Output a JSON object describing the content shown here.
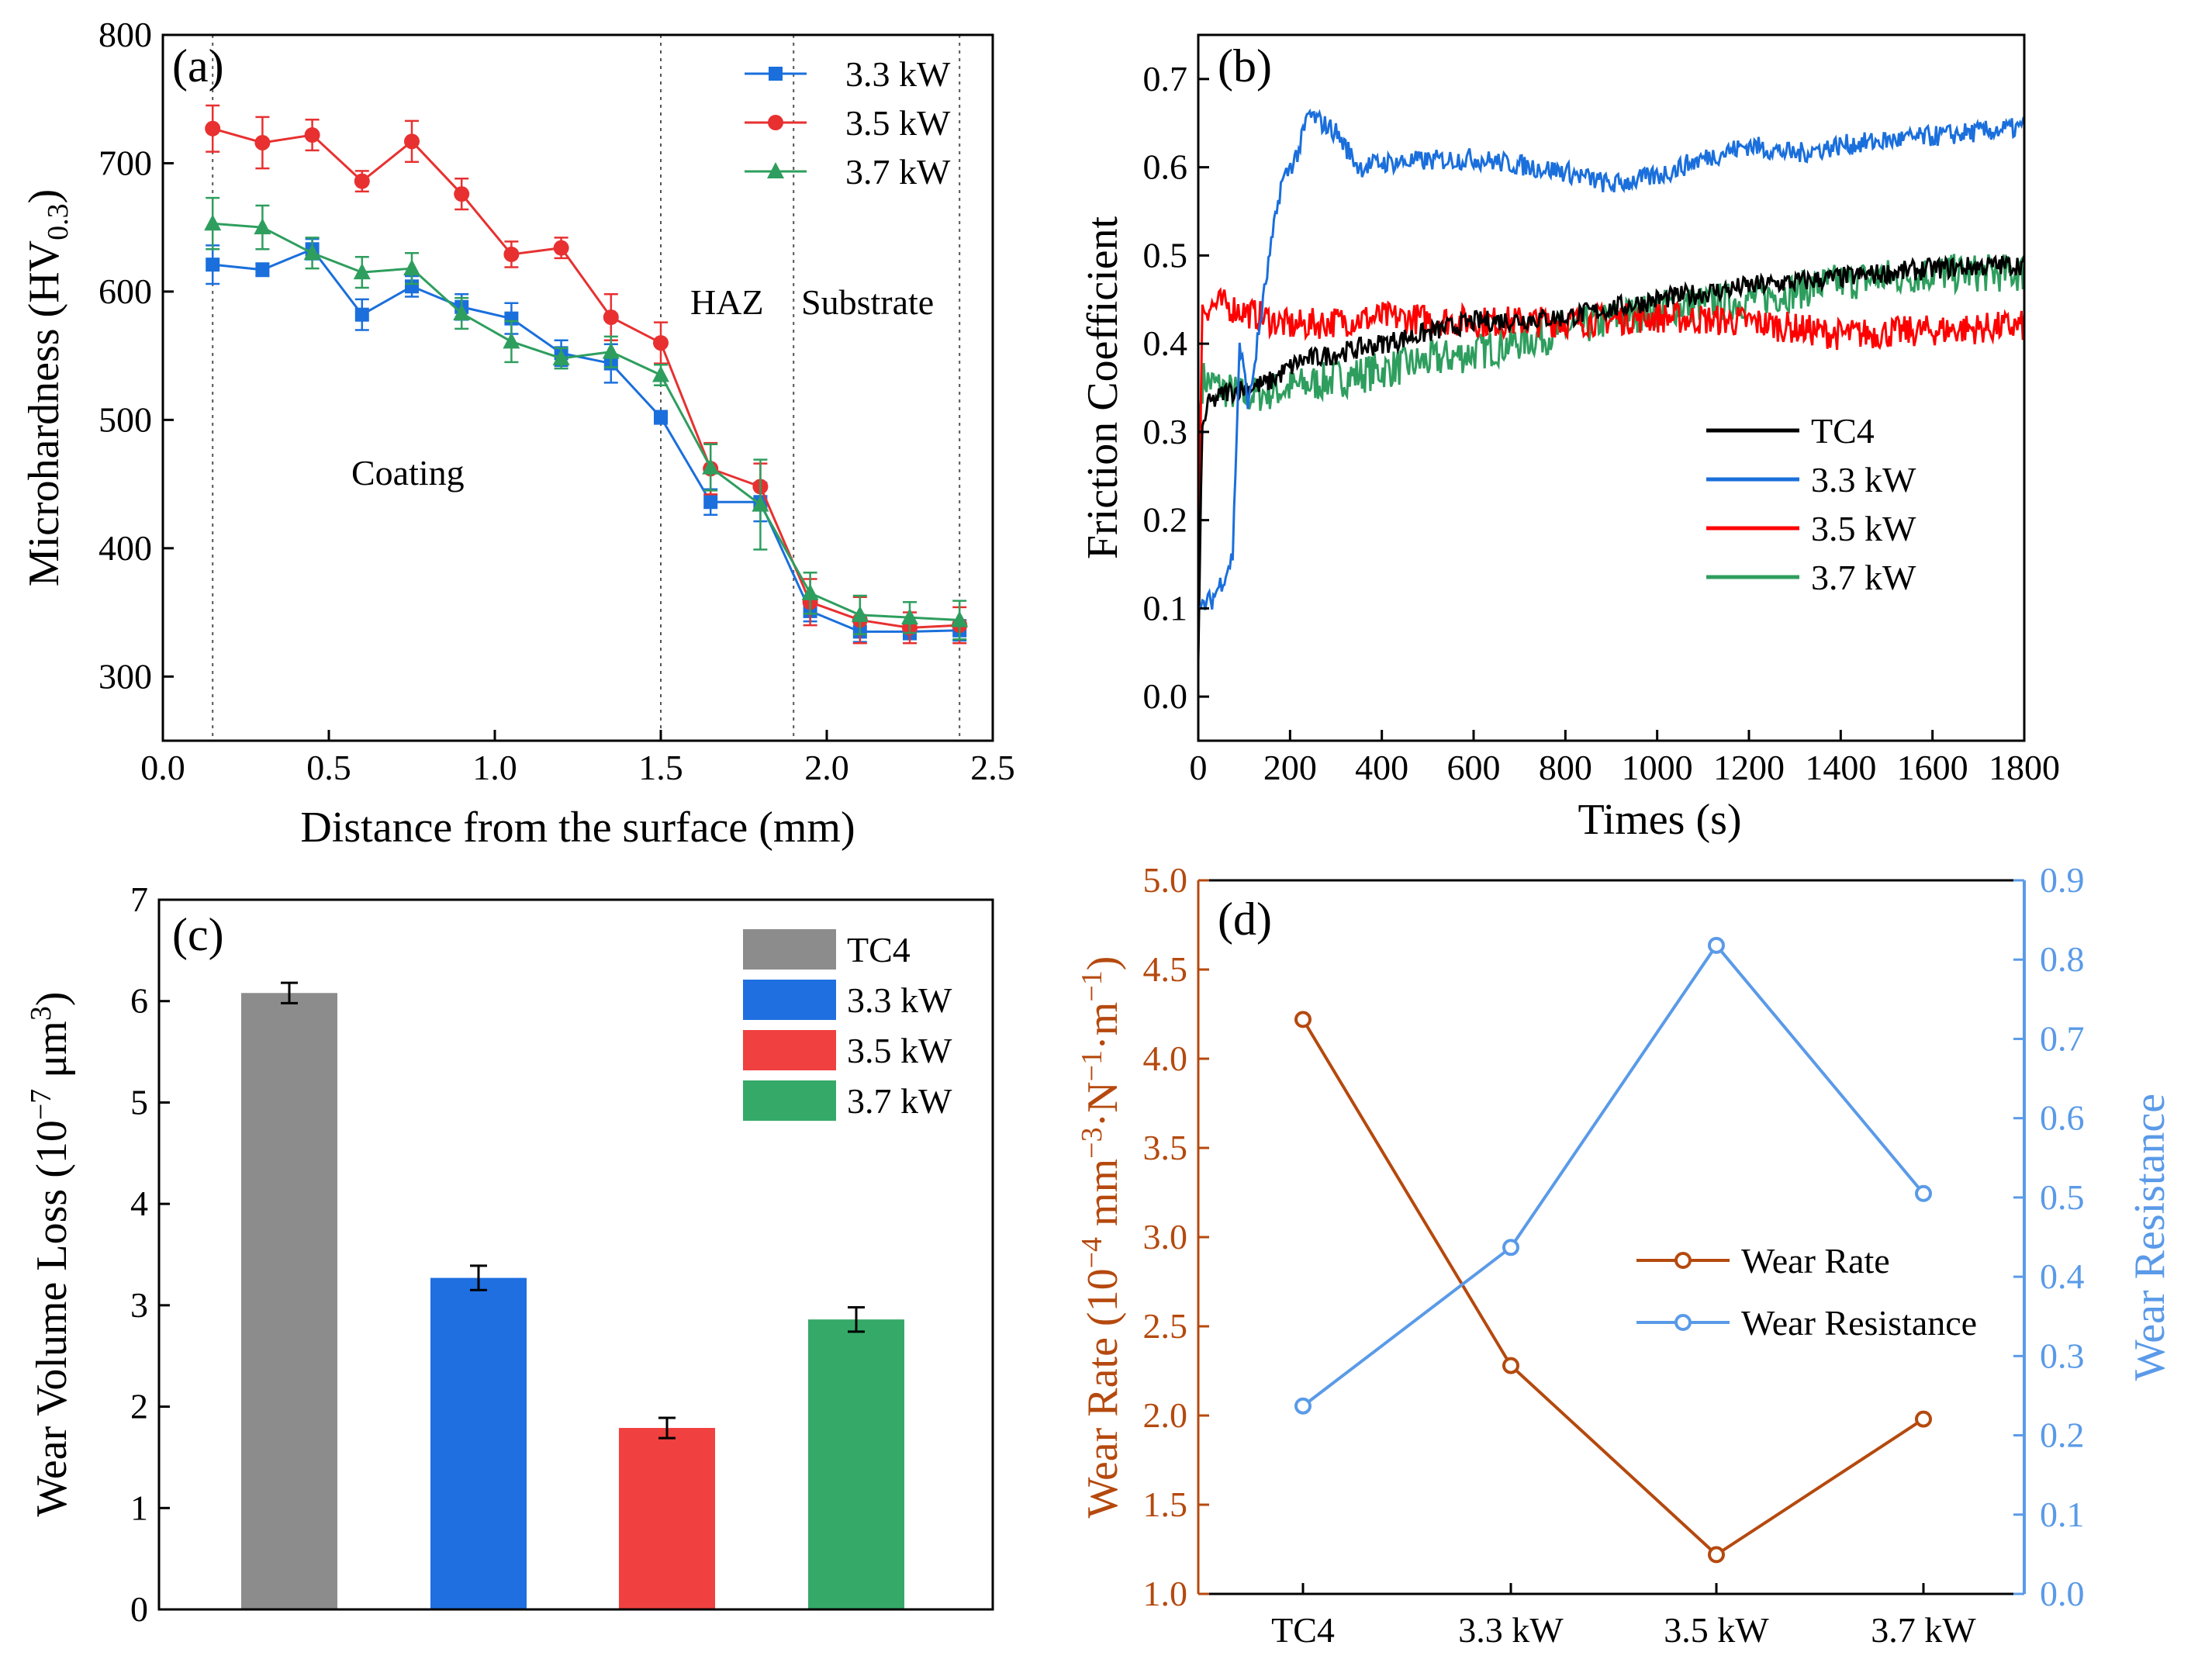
{
  "colors": {
    "tc4": "#000000",
    "kw33": "#1a6fdc",
    "kw35": "#e83030",
    "kw37": "#2e9e5e",
    "gray": "#8c8c8c",
    "brown": "#b5490e",
    "lightblue": "#5a9ae8",
    "bar33": "#1f6fe0",
    "bar35": "#f04040",
    "bar37": "#35aa68"
  },
  "chart_data": [
    {
      "id": "a",
      "type": "line",
      "panel_label": "(a)",
      "xlabel": "Distance from the surface (mm)",
      "ylabel": "Microhardness (HV",
      "ylabel_sub": "0.3",
      "ylabel_end": ")",
      "xlim": [
        0.0,
        2.5
      ],
      "ylim": [
        250,
        800
      ],
      "xticks": [
        "0.0",
        "0.5",
        "1.0",
        "1.5",
        "2.0",
        "2.5"
      ],
      "yticks": [
        "300",
        "400",
        "500",
        "600",
        "700",
        "800"
      ],
      "vlines": [
        0.15,
        1.5,
        1.9,
        2.4
      ],
      "annotations": {
        "coating": "Coating",
        "haz": "HAZ",
        "substrate": "Substrate"
      },
      "x": [
        0.15,
        0.3,
        0.45,
        0.6,
        0.75,
        0.9,
        1.05,
        1.2,
        1.35,
        1.5,
        1.65,
        1.8,
        1.95,
        2.1,
        2.25,
        2.4
      ],
      "series": [
        {
          "name": "3.3 kW",
          "color": "#1a6fdc",
          "marker": "square",
          "values": [
            621,
            617,
            633,
            582,
            604,
            588,
            579,
            552,
            544,
            502,
            436,
            436,
            351,
            335,
            335,
            336
          ],
          "errors": [
            15,
            5,
            8,
            12,
            8,
            10,
            12,
            10,
            15,
            5,
            10,
            15,
            8,
            8,
            6,
            8
          ]
        },
        {
          "name": "3.5 kW",
          "color": "#e83030",
          "marker": "circle",
          "values": [
            727,
            716,
            722,
            686,
            717,
            676,
            629,
            634,
            580,
            560,
            462,
            448,
            358,
            344,
            338,
            340
          ],
          "errors": [
            18,
            20,
            12,
            8,
            16,
            12,
            10,
            8,
            18,
            16,
            20,
            18,
            18,
            18,
            12,
            14
          ]
        },
        {
          "name": "3.7 kW",
          "color": "#2e9e5e",
          "marker": "triangle",
          "values": [
            653,
            650,
            630,
            615,
            618,
            583,
            561,
            548,
            553,
            535,
            463,
            434,
            365,
            348,
            346,
            344
          ],
          "errors": [
            20,
            17,
            12,
            12,
            12,
            12,
            16,
            8,
            12,
            8,
            18,
            35,
            16,
            15,
            12,
            15
          ]
        }
      ]
    },
    {
      "id": "b",
      "type": "line",
      "panel_label": "(b)",
      "xlabel": "Times (s)",
      "ylabel": "Friction Coefficient",
      "xlim": [
        0,
        1800
      ],
      "ylim": [
        -0.05,
        0.75
      ],
      "xticks": [
        "0",
        "200",
        "400",
        "600",
        "800",
        "1000",
        "1200",
        "1400",
        "1600",
        "1800"
      ],
      "yticks": [
        "0.0",
        "0.1",
        "0.2",
        "0.3",
        "0.4",
        "0.5",
        "0.6",
        "0.7"
      ],
      "series": [
        {
          "name": "TC4",
          "color": "#000000",
          "noise": 0.012,
          "points": [
            [
              0,
              0.04
            ],
            [
              8,
              0.3
            ],
            [
              20,
              0.33
            ],
            [
              60,
              0.345
            ],
            [
              150,
              0.355
            ],
            [
              220,
              0.38
            ],
            [
              400,
              0.4
            ],
            [
              600,
              0.425
            ],
            [
              800,
              0.43
            ],
            [
              1000,
              0.45
            ],
            [
              1200,
              0.465
            ],
            [
              1400,
              0.475
            ],
            [
              1600,
              0.485
            ],
            [
              1800,
              0.49
            ]
          ]
        },
        {
          "name": "3.3 kW",
          "color": "#1a6fdc",
          "noise": 0.012,
          "points": [
            [
              0,
              0.1
            ],
            [
              30,
              0.11
            ],
            [
              60,
              0.14
            ],
            [
              75,
              0.16
            ],
            [
              90,
              0.4
            ],
            [
              110,
              0.33
            ],
            [
              150,
              0.48
            ],
            [
              180,
              0.58
            ],
            [
              220,
              0.62
            ],
            [
              240,
              0.66
            ],
            [
              300,
              0.64
            ],
            [
              350,
              0.6
            ],
            [
              400,
              0.605
            ],
            [
              600,
              0.61
            ],
            [
              800,
              0.595
            ],
            [
              900,
              0.58
            ],
            [
              1000,
              0.59
            ],
            [
              1100,
              0.61
            ],
            [
              1200,
              0.625
            ],
            [
              1300,
              0.615
            ],
            [
              1400,
              0.625
            ],
            [
              1600,
              0.635
            ],
            [
              1800,
              0.645
            ]
          ]
        },
        {
          "name": "3.5 kW",
          "color": "#ff0000",
          "noise": 0.018,
          "points": [
            [
              0,
              0.05
            ],
            [
              8,
              0.44
            ],
            [
              50,
              0.445
            ],
            [
              200,
              0.42
            ],
            [
              400,
              0.43
            ],
            [
              600,
              0.425
            ],
            [
              800,
              0.425
            ],
            [
              1000,
              0.43
            ],
            [
              1200,
              0.425
            ],
            [
              1400,
              0.41
            ],
            [
              1600,
              0.415
            ],
            [
              1800,
              0.42
            ]
          ]
        },
        {
          "name": "3.7 kW",
          "color": "#2e9e5e",
          "noise": 0.022,
          "points": [
            [
              0,
              0.3
            ],
            [
              10,
              0.36
            ],
            [
              50,
              0.35
            ],
            [
              100,
              0.34
            ],
            [
              200,
              0.35
            ],
            [
              400,
              0.37
            ],
            [
              600,
              0.39
            ],
            [
              800,
              0.415
            ],
            [
              1000,
              0.44
            ],
            [
              1200,
              0.45
            ],
            [
              1400,
              0.47
            ],
            [
              1600,
              0.48
            ],
            [
              1800,
              0.48
            ]
          ]
        }
      ]
    },
    {
      "id": "c",
      "type": "bar",
      "panel_label": "(c)",
      "ylabel": "Wear Volume Loss (10",
      "ylabel_sup": "−7",
      "ylabel_end": " μm",
      "ylabel_sup2": "3",
      "ylabel_close": ")",
      "ylim": [
        0,
        7
      ],
      "yticks": [
        "0",
        "1",
        "2",
        "3",
        "4",
        "5",
        "6",
        "7"
      ],
      "categories": [
        "TC4",
        "3.3 kW",
        "3.5 kW",
        "3.7 kW"
      ],
      "values": [
        6.08,
        3.27,
        1.79,
        2.86
      ],
      "errors": [
        0.1,
        0.12,
        0.1,
        0.12
      ],
      "colors": [
        "#8c8c8c",
        "#1f6fe0",
        "#f04040",
        "#35aa68"
      ]
    },
    {
      "id": "d",
      "type": "line",
      "panel_label": "(d)",
      "categories": [
        "TC4",
        "3.3 kW",
        "3.5 kW",
        "3.7 kW"
      ],
      "left_axis": {
        "label_pre": "Wear Rate (10",
        "label_sup1": "−4",
        "label_mid": " mm",
        "label_sup2": "−3",
        "label_mid2": "·N",
        "label_sup3": "−1",
        "label_mid3": "·m",
        "label_sup4": "−1",
        "label_end": ")",
        "ylim": [
          1.0,
          5.0
        ],
        "yticks": [
          "1.0",
          "1.5",
          "2.0",
          "2.5",
          "3.0",
          "3.5",
          "4.0",
          "4.5",
          "5.0"
        ],
        "color": "#b5490e"
      },
      "right_axis": {
        "label": "Wear Resistance",
        "ylim": [
          0.0,
          0.9
        ],
        "yticks": [
          "0.0",
          "0.1",
          "0.2",
          "0.3",
          "0.4",
          "0.5",
          "0.6",
          "0.7",
          "0.8",
          "0.9"
        ],
        "color": "#5a9ae8"
      },
      "series": [
        {
          "name": "Wear Rate",
          "axis": "left",
          "color": "#b5490e",
          "values": [
            4.22,
            2.28,
            1.22,
            1.98
          ]
        },
        {
          "name": "Wear Resistance",
          "axis": "right",
          "color": "#5a9ae8",
          "values": [
            0.237,
            0.437,
            0.818,
            0.505
          ]
        }
      ]
    }
  ]
}
